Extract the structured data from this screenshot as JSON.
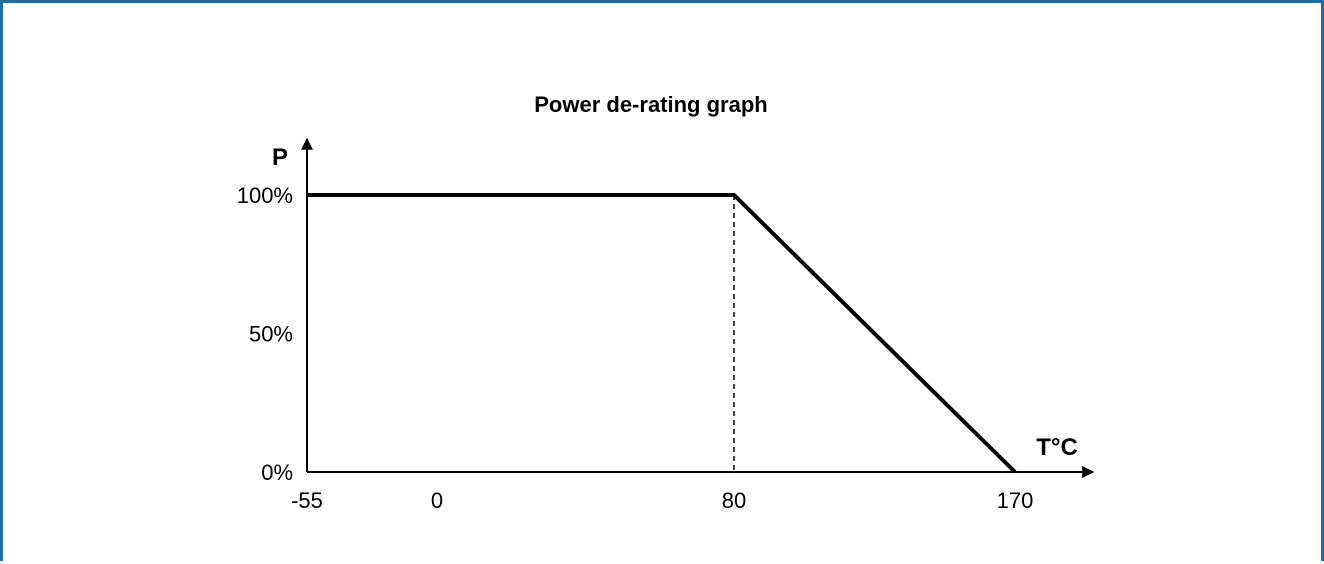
{
  "colors": {
    "frame_border": "#1f6fa8",
    "line": "#000000"
  },
  "chart_data": {
    "type": "line",
    "title": "Power de-rating graph",
    "xlabel": "T°C",
    "ylabel": "P",
    "x_ticks": [
      {
        "value": -55,
        "label": "-55"
      },
      {
        "value": 0,
        "label": "0"
      },
      {
        "value": 80,
        "label": "80"
      },
      {
        "value": 170,
        "label": "170"
      }
    ],
    "y_ticks": [
      {
        "value": 0,
        "label": "0%"
      },
      {
        "value": 50,
        "label": "50%"
      },
      {
        "value": 100,
        "label": "100%"
      }
    ],
    "xlim": [
      -55,
      170
    ],
    "ylim": [
      0,
      100
    ],
    "series": [
      {
        "points": [
          {
            "x": -55,
            "y": 100
          },
          {
            "x": 80,
            "y": 100
          },
          {
            "x": 170,
            "y": 0
          }
        ]
      }
    ],
    "reference_lines": [
      {
        "orientation": "vertical",
        "x": 80,
        "style": "dashed"
      }
    ]
  }
}
